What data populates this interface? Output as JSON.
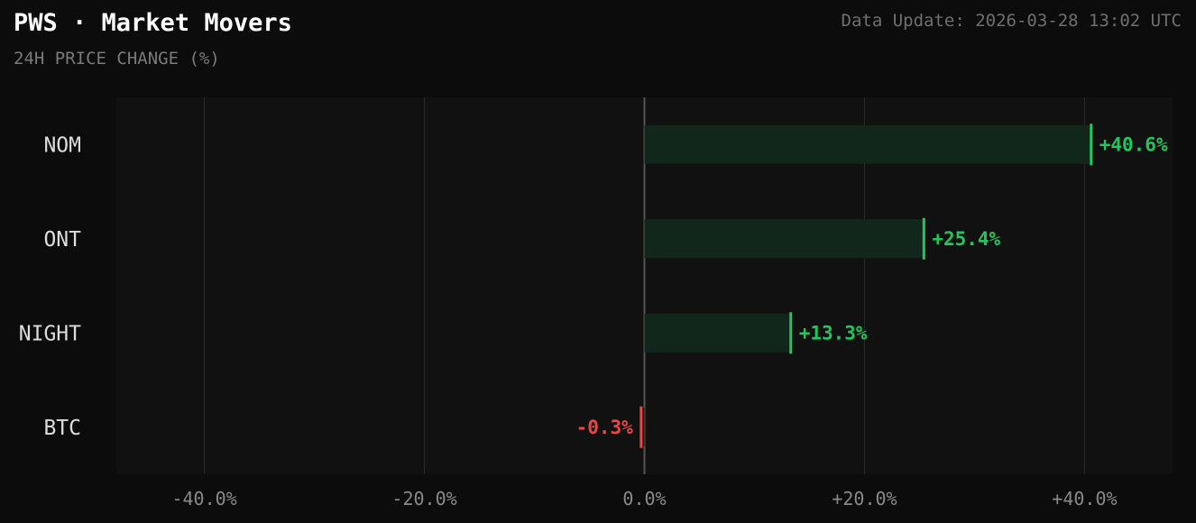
{
  "header": {
    "title": "PWS · Market Movers",
    "subtitle": "24H PRICE CHANGE (%)",
    "update": "Data Update: 2026-03-28 13:02 UTC"
  },
  "colors": {
    "positive": "#22c55e",
    "negative": "#ef4444",
    "positive_bar": "#12271c",
    "plot_bg": "#111111",
    "grid": "#2a2a2a",
    "zero_line": "#555555",
    "tick_text": "#8a8a8a",
    "category_text": "#dddddd"
  },
  "chart_data": {
    "type": "bar",
    "orientation": "horizontal",
    "categories": [
      "NOM",
      "ONT",
      "NIGHT",
      "BTC"
    ],
    "values": [
      40.6,
      25.4,
      13.3,
      -0.3
    ],
    "value_labels": [
      "+40.6%",
      "+25.4%",
      "+13.3%",
      "-0.3%"
    ],
    "x_ticks": [
      -40,
      -20,
      0,
      20,
      40
    ],
    "x_tick_labels": [
      "-40.0%",
      "-20.0%",
      "0.0%",
      "+20.0%",
      "+40.0%"
    ],
    "xlim": [
      -48,
      48
    ],
    "grid": true
  }
}
